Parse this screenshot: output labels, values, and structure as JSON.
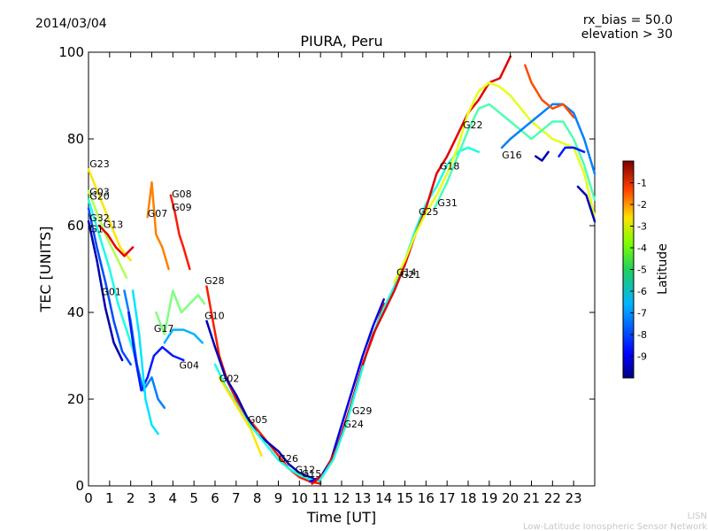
{
  "header": {
    "date": "2014/03/04",
    "bias": "rx_bias = 50.0",
    "elevation": "elevation > 30"
  },
  "footer": {
    "line1": "LISN",
    "line2": "Low-Latitude Ionospheric Sensor Network"
  },
  "chart_data": {
    "type": "scatter",
    "title": "PIURA, Peru",
    "xlabel": "Time [UT]",
    "ylabel": "TEC [UNITS]",
    "xlim": [
      0,
      24
    ],
    "ylim": [
      0,
      100
    ],
    "x_ticks": [
      0,
      1,
      2,
      3,
      4,
      5,
      6,
      7,
      8,
      9,
      10,
      11,
      12,
      13,
      14,
      15,
      16,
      17,
      18,
      19,
      20,
      21,
      22,
      23
    ],
    "y_ticks": [
      0,
      20,
      40,
      60,
      80,
      100
    ],
    "colorbar": {
      "label": "Latitude",
      "range": [
        -10,
        0
      ],
      "ticks": [
        -1,
        -2,
        -3,
        -4,
        -5,
        -6,
        -7,
        -8,
        -9
      ]
    },
    "satellite_labels": [
      {
        "name": "G23",
        "x": 0.05,
        "y": 73.5
      },
      {
        "name": "G03",
        "x": 0.05,
        "y": 67.0
      },
      {
        "name": "G20",
        "x": 0.05,
        "y": 66.0
      },
      {
        "name": "G32",
        "x": 0.05,
        "y": 61.0
      },
      {
        "name": "G13",
        "x": 0.7,
        "y": 59.5
      },
      {
        "name": "G1",
        "x": 0.05,
        "y": 58.5
      },
      {
        "name": "G07",
        "x": 2.8,
        "y": 62.0
      },
      {
        "name": "G08",
        "x": 3.95,
        "y": 66.5
      },
      {
        "name": "G09",
        "x": 3.95,
        "y": 63.5
      },
      {
        "name": "G28",
        "x": 5.5,
        "y": 46.5
      },
      {
        "name": "G01",
        "x": 0.6,
        "y": 44.0
      },
      {
        "name": "G10",
        "x": 5.5,
        "y": 38.5
      },
      {
        "name": "G17",
        "x": 3.1,
        "y": 35.5
      },
      {
        "name": "G04",
        "x": 4.3,
        "y": 27.0
      },
      {
        "name": "G02",
        "x": 6.2,
        "y": 24.0
      },
      {
        "name": "G05",
        "x": 7.55,
        "y": 14.5
      },
      {
        "name": "G26",
        "x": 9.0,
        "y": 5.5
      },
      {
        "name": "G12",
        "x": 9.8,
        "y": 3.0
      },
      {
        "name": "G15",
        "x": 10.1,
        "y": 2.0
      },
      {
        "name": "G24",
        "x": 12.1,
        "y": 13.5
      },
      {
        "name": "G29",
        "x": 12.5,
        "y": 16.5
      },
      {
        "name": "G14",
        "x": 14.6,
        "y": 48.5
      },
      {
        "name": "G21",
        "x": 14.8,
        "y": 48.0
      },
      {
        "name": "G25",
        "x": 15.65,
        "y": 62.5
      },
      {
        "name": "G31",
        "x": 16.55,
        "y": 64.5
      },
      {
        "name": "G18",
        "x": 16.65,
        "y": 73.0
      },
      {
        "name": "G22",
        "x": 17.75,
        "y": 82.5
      },
      {
        "name": "G16",
        "x": 19.6,
        "y": 75.5
      }
    ],
    "series": [
      {
        "points": [
          [
            0.0,
            73
          ],
          [
            0.5,
            67
          ],
          [
            1.0,
            61
          ],
          [
            1.5,
            55
          ],
          [
            2.0,
            52
          ]
        ],
        "lat": -3.5
      },
      {
        "points": [
          [
            0.0,
            68
          ],
          [
            0.4,
            63
          ],
          [
            0.8,
            58
          ],
          [
            1.3,
            53
          ],
          [
            1.8,
            48
          ]
        ],
        "lat": -4.5
      },
      {
        "points": [
          [
            0.0,
            66
          ],
          [
            0.5,
            58
          ],
          [
            1.0,
            50
          ],
          [
            1.4,
            42
          ],
          [
            1.8,
            36
          ],
          [
            2.2,
            30
          ]
        ],
        "lat": -6.0
      },
      {
        "points": [
          [
            0.0,
            64
          ],
          [
            0.4,
            55
          ],
          [
            0.8,
            47
          ],
          [
            1.2,
            38
          ],
          [
            1.6,
            31
          ],
          [
            2.0,
            28
          ]
        ],
        "lat": -8.0
      },
      {
        "points": [
          [
            0.0,
            61
          ],
          [
            0.4,
            52
          ],
          [
            0.8,
            41
          ],
          [
            1.2,
            33
          ],
          [
            1.6,
            29
          ]
        ],
        "lat": -9.5
      },
      {
        "points": [
          [
            0.5,
            60
          ],
          [
            0.9,
            58
          ],
          [
            1.3,
            55
          ],
          [
            1.7,
            53
          ],
          [
            2.1,
            55
          ]
        ],
        "lat": -1.0
      },
      {
        "points": [
          [
            2.8,
            62
          ],
          [
            3.0,
            70
          ],
          [
            3.2,
            58
          ],
          [
            3.5,
            55
          ],
          [
            3.8,
            50
          ]
        ],
        "lat": -2.5
      },
      {
        "points": [
          [
            3.9,
            67
          ],
          [
            4.1,
            63
          ],
          [
            4.3,
            58
          ],
          [
            4.5,
            55
          ],
          [
            4.8,
            50
          ]
        ],
        "lat": -1.5
      },
      {
        "points": [
          [
            1.7,
            45
          ],
          [
            2.0,
            38
          ],
          [
            2.3,
            28
          ],
          [
            2.6,
            22
          ],
          [
            3.0,
            25
          ],
          [
            3.3,
            20
          ],
          [
            3.6,
            18
          ]
        ],
        "lat": -7.5
      },
      {
        "points": [
          [
            1.9,
            40
          ],
          [
            2.2,
            30
          ],
          [
            2.5,
            22
          ],
          [
            2.8,
            25
          ],
          [
            3.1,
            30
          ],
          [
            3.5,
            32
          ],
          [
            4.0,
            30
          ],
          [
            4.5,
            29
          ]
        ],
        "lat": -8.5
      },
      {
        "points": [
          [
            2.1,
            45
          ],
          [
            2.4,
            35
          ],
          [
            2.7,
            20
          ],
          [
            3.0,
            14
          ],
          [
            3.3,
            12
          ]
        ],
        "lat": -6.5
      },
      {
        "points": [
          [
            3.2,
            40
          ],
          [
            3.6,
            35
          ],
          [
            4.0,
            45
          ],
          [
            4.4,
            40
          ],
          [
            4.8,
            42
          ],
          [
            5.2,
            44
          ],
          [
            5.5,
            42
          ]
        ],
        "lat": -5.0
      },
      {
        "points": [
          [
            3.6,
            33
          ],
          [
            4.0,
            36
          ],
          [
            4.5,
            36
          ],
          [
            5.0,
            35
          ],
          [
            5.4,
            33
          ]
        ],
        "lat": -7.0
      },
      {
        "points": [
          [
            5.6,
            46
          ],
          [
            5.9,
            38
          ],
          [
            6.2,
            30
          ],
          [
            6.6,
            24
          ],
          [
            7.0,
            20
          ],
          [
            7.5,
            16
          ],
          [
            8.0,
            13
          ],
          [
            8.5,
            10
          ],
          [
            9.0,
            7
          ],
          [
            9.5,
            4
          ],
          [
            10.0,
            2
          ],
          [
            10.5,
            1
          ],
          [
            11.0,
            0.5
          ]
        ],
        "lat": -1.5
      },
      {
        "points": [
          [
            5.6,
            38
          ],
          [
            6.0,
            32
          ],
          [
            6.5,
            25
          ],
          [
            7.0,
            21
          ],
          [
            7.5,
            16
          ],
          [
            8.0,
            12
          ],
          [
            8.5,
            10
          ],
          [
            9.0,
            8
          ],
          [
            9.5,
            5
          ],
          [
            10.0,
            3
          ],
          [
            10.5,
            2
          ],
          [
            11.0,
            1
          ]
        ],
        "lat": -9.5
      },
      {
        "points": [
          [
            6.0,
            28
          ],
          [
            6.5,
            23
          ],
          [
            7.0,
            19
          ],
          [
            7.5,
            15
          ],
          [
            8.0,
            12
          ],
          [
            8.5,
            9
          ],
          [
            9.0,
            6
          ],
          [
            9.5,
            4
          ],
          [
            10.0,
            2.5
          ],
          [
            10.5,
            1.5
          ],
          [
            11.0,
            1
          ]
        ],
        "lat": -6.0
      },
      {
        "points": [
          [
            6.2,
            25
          ],
          [
            6.7,
            21
          ],
          [
            7.2,
            17
          ],
          [
            7.7,
            13
          ],
          [
            8.2,
            7
          ]
        ],
        "lat": -3.5
      },
      {
        "points": [
          [
            10.5,
            1
          ],
          [
            11.0,
            2
          ],
          [
            11.5,
            6
          ],
          [
            12.0,
            14
          ],
          [
            12.5,
            22
          ],
          [
            13.0,
            30
          ],
          [
            13.5,
            37
          ],
          [
            14.0,
            43
          ]
        ],
        "lat": -9.0
      },
      {
        "points": [
          [
            10.6,
            0.5
          ],
          [
            11.2,
            3
          ],
          [
            11.8,
            9
          ],
          [
            12.4,
            18
          ],
          [
            13.0,
            28
          ],
          [
            13.6,
            36
          ],
          [
            14.0,
            42
          ]
        ],
        "lat": -1.0
      },
      {
        "points": [
          [
            11.0,
            1.5
          ],
          [
            11.6,
            6
          ],
          [
            12.2,
            14
          ],
          [
            12.8,
            24
          ],
          [
            13.4,
            34
          ],
          [
            14.0,
            41
          ],
          [
            14.5,
            46
          ],
          [
            15.0,
            52
          ],
          [
            15.5,
            59
          ],
          [
            16.0,
            65
          ],
          [
            16.5,
            69
          ],
          [
            17.0,
            74
          ],
          [
            17.5,
            77
          ],
          [
            18.0,
            78
          ],
          [
            18.5,
            77
          ]
        ],
        "lat": -6.0
      },
      {
        "points": [
          [
            13.0,
            28
          ],
          [
            13.5,
            35
          ],
          [
            14.0,
            40
          ],
          [
            14.5,
            45
          ],
          [
            15.0,
            51
          ],
          [
            15.5,
            58
          ],
          [
            16.0,
            64
          ],
          [
            16.5,
            72
          ],
          [
            17.0,
            76
          ],
          [
            17.5,
            81
          ],
          [
            18.0,
            86
          ],
          [
            18.5,
            89
          ],
          [
            19.0,
            93
          ],
          [
            19.5,
            94
          ],
          [
            20.0,
            99
          ]
        ],
        "lat": -1.0
      },
      {
        "points": [
          [
            14.5,
            47
          ],
          [
            15.0,
            52
          ],
          [
            15.5,
            58
          ],
          [
            16.0,
            63
          ],
          [
            16.5,
            67
          ],
          [
            17.0,
            72
          ],
          [
            17.5,
            78
          ],
          [
            18.0,
            86
          ],
          [
            18.5,
            91
          ],
          [
            19.0,
            93
          ],
          [
            19.5,
            92
          ],
          [
            20.0,
            90
          ],
          [
            20.5,
            87
          ],
          [
            21.0,
            84
          ],
          [
            21.5,
            82
          ],
          [
            22.0,
            80
          ],
          [
            22.5,
            79
          ],
          [
            23.0,
            78
          ],
          [
            23.5,
            72
          ],
          [
            24.0,
            62
          ]
        ],
        "lat": -4.0
      },
      {
        "points": [
          [
            16.4,
            64
          ],
          [
            17.0,
            70
          ],
          [
            17.5,
            76
          ],
          [
            18.0,
            82
          ],
          [
            18.5,
            87
          ],
          [
            19.0,
            88
          ],
          [
            19.5,
            86
          ],
          [
            20.0,
            84
          ],
          [
            20.5,
            82
          ],
          [
            21.0,
            80
          ],
          [
            21.5,
            82
          ],
          [
            22.0,
            84
          ],
          [
            22.5,
            84
          ],
          [
            23.0,
            80
          ],
          [
            23.5,
            74
          ],
          [
            24.0,
            66
          ]
        ],
        "lat": -5.5
      },
      {
        "points": [
          [
            19.6,
            78
          ],
          [
            20.0,
            80
          ],
          [
            20.5,
            82
          ],
          [
            21.0,
            84
          ],
          [
            21.5,
            86
          ],
          [
            22.0,
            88
          ],
          [
            22.5,
            88
          ],
          [
            23.0,
            86
          ],
          [
            23.5,
            80
          ],
          [
            24.0,
            72
          ]
        ],
        "lat": -7.5
      },
      {
        "points": [
          [
            20.7,
            97
          ],
          [
            21.0,
            93
          ],
          [
            21.5,
            89
          ],
          [
            22.0,
            87
          ],
          [
            22.5,
            88
          ],
          [
            23.0,
            85
          ]
        ],
        "lat": -2.0
      },
      {
        "points": [
          [
            21.2,
            76
          ],
          [
            21.5,
            75
          ],
          [
            21.8,
            77
          ]
        ],
        "lat": -9.5
      },
      {
        "points": [
          [
            22.3,
            76
          ],
          [
            22.6,
            78
          ],
          [
            23.0,
            78
          ],
          [
            23.5,
            77
          ]
        ],
        "lat": -8.5
      },
      {
        "points": [
          [
            23.2,
            69
          ],
          [
            23.6,
            67
          ],
          [
            24.0,
            61
          ]
        ],
        "lat": -9.5
      }
    ]
  }
}
